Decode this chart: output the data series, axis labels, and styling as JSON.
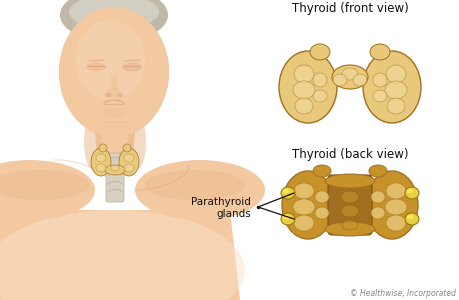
{
  "background_color": "#ffffff",
  "thyroid_main": "#C8922A",
  "thyroid_light": "#E8C87A",
  "thyroid_lighter": "#F0D898",
  "thyroid_dark": "#A07020",
  "thyroid_darker": "#7A5010",
  "parathyroid_color": "#E8D040",
  "parathyroid_highlight": "#F8F060",
  "skin_base": "#F2C9A0",
  "skin_mid": "#E8B888",
  "skin_dark": "#D4906A",
  "skin_light": "#FAE0C8",
  "hair_color": "#C0B8A8",
  "trachea_color": "#D8D0C0",
  "trachea_ring": "#B8B0A0",
  "label_front": "Thyroid (front view)",
  "label_back": "Thyroid (back view)",
  "label_parathyroid": "Parathyroid\nglands",
  "copyright": "© Healthwise, Incorporated",
  "font_size_label": 8.5,
  "font_size_copy": 5.5,
  "font_size_annot": 7.5
}
